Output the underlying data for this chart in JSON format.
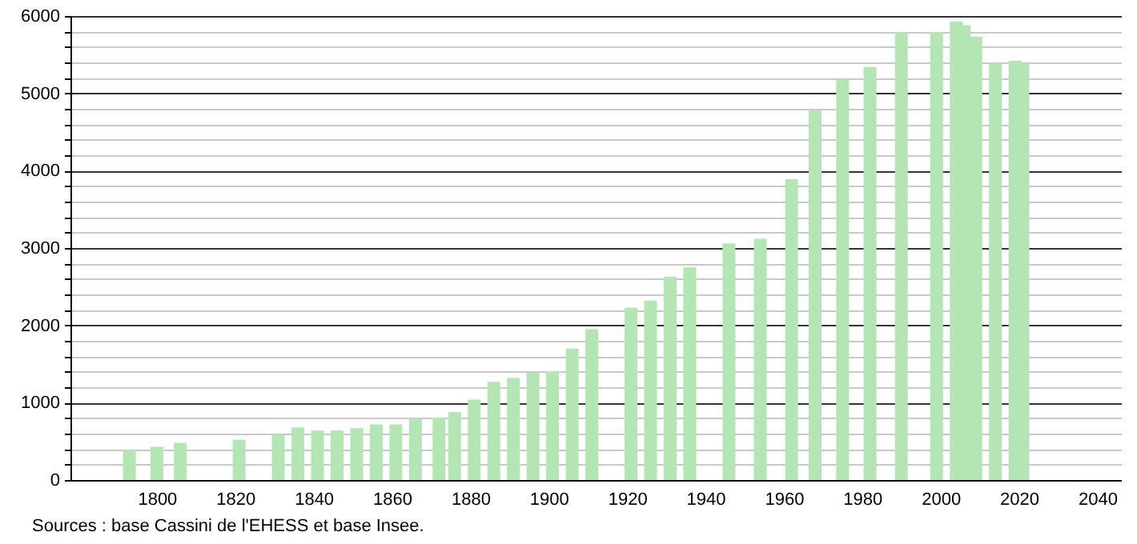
{
  "chart_data": {
    "type": "bar",
    "x": [
      1793,
      1800,
      1806,
      1821,
      1831,
      1836,
      1841,
      1846,
      1851,
      1856,
      1861,
      1866,
      1872,
      1876,
      1881,
      1886,
      1891,
      1896,
      1901,
      1906,
      1911,
      1921,
      1926,
      1931,
      1936,
      1946,
      1954,
      1962,
      1968,
      1975,
      1982,
      1990,
      1999,
      2004,
      2006,
      2009,
      2014,
      2019,
      2021
    ],
    "values": [
      390,
      430,
      480,
      520,
      590,
      680,
      640,
      640,
      670,
      720,
      720,
      790,
      810,
      880,
      1040,
      1270,
      1320,
      1390,
      1410,
      1700,
      1950,
      2230,
      2320,
      2630,
      2750,
      3060,
      3120,
      3890,
      4790,
      5180,
      5340,
      5790,
      5790,
      5930,
      5880,
      5730,
      5390,
      5420,
      5390
    ],
    "color": "#b3e6b3",
    "xlim": [
      1780,
      2044
    ],
    "xticks": [
      1800,
      1820,
      1840,
      1860,
      1880,
      1900,
      1920,
      1940,
      1960,
      1980,
      2000,
      2020,
      2040
    ],
    "ylim": [
      0,
      6000
    ],
    "yticks": [
      0,
      {
        "value": 200,
        "label": null
      },
      {
        "value": 400,
        "label": null
      },
      {
        "value": 600,
        "label": null
      },
      {
        "value": 800,
        "label": null
      },
      1000,
      {
        "value": 1200,
        "label": null
      },
      {
        "value": 1400,
        "label": null
      },
      {
        "value": 1600,
        "label": null
      },
      {
        "value": 1800,
        "label": null
      },
      2000,
      {
        "value": 2200,
        "label": null
      },
      {
        "value": 2400,
        "label": null
      },
      {
        "value": 2600,
        "label": null
      },
      {
        "value": 2800,
        "label": null
      },
      3000,
      {
        "value": 3200,
        "label": null
      },
      {
        "value": 3400,
        "label": null
      },
      {
        "value": 3600,
        "label": null
      },
      {
        "value": 3800,
        "label": null
      },
      4000,
      {
        "value": 4200,
        "label": null
      },
      {
        "value": 4400,
        "label": null
      },
      {
        "value": 4600,
        "label": null
      },
      {
        "value": 4800,
        "label": null
      },
      5000,
      {
        "value": 5200,
        "label": null
      },
      {
        "value": 5400,
        "label": null
      },
      {
        "value": 5600,
        "label": null
      },
      {
        "value": 5800,
        "label": null
      },
      6000
    ],
    "grid": "y",
    "annotations": [
      "Sources : base Cassini de l'EHESS et base Insee."
    ]
  }
}
